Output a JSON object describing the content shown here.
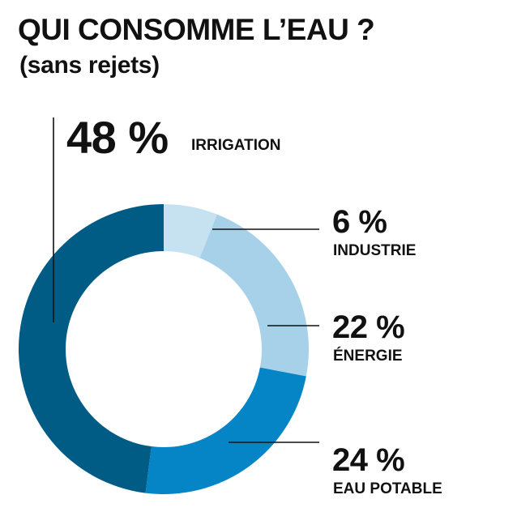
{
  "title": "QUI CONSOMME L’EAU ?",
  "subtitle": "(sans rejets)",
  "chart_data": {
    "type": "pie",
    "variant": "donut",
    "title": "QUI CONSOMME L’EAU ?",
    "subtitle": "(sans rejets)",
    "slices": [
      {
        "label": "INDUSTRIE",
        "value": 6,
        "value_label": "6 %",
        "color": "#c6e2f1"
      },
      {
        "label": "ÉNERGIE",
        "value": 22,
        "value_label": "22 %",
        "color": "#a6d1e9"
      },
      {
        "label": "EAU POTABLE",
        "value": 24,
        "value_label": "24 %",
        "color": "#0585c5"
      },
      {
        "label": "IRRIGATION",
        "value": 48,
        "value_label": "48 %",
        "color": "#005b85"
      }
    ]
  }
}
